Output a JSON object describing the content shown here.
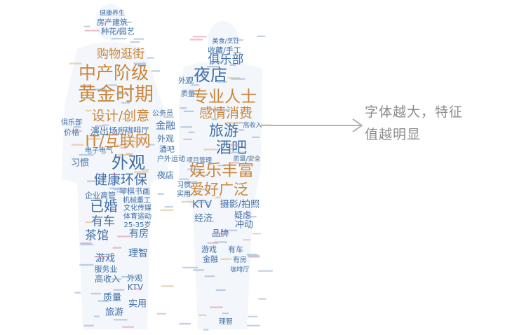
{
  "colors": {
    "blue": "#3f6ea8",
    "orange": "#c9863a",
    "light_blue": "#8aa9cf",
    "light_orange": "#dfb17a",
    "pink": "#e08aa0",
    "gray_text": "#8c8c8c",
    "arrow": "#b4b4b4"
  },
  "callout": {
    "line1": "字体越大，特征",
    "line2": "值越明显"
  },
  "left_figure": {
    "major": [
      {
        "text": "黄金时期",
        "color": "orange"
      },
      {
        "text": "中产阶级",
        "color": "orange"
      },
      {
        "text": "购物逛街",
        "color": "orange"
      },
      {
        "text": "设计/创意",
        "color": "orange"
      },
      {
        "text": "IT/互联网",
        "color": "orange"
      },
      {
        "text": "外观",
        "color": "blue"
      },
      {
        "text": "健康环保",
        "color": "blue"
      },
      {
        "text": "已婚",
        "color": "blue"
      },
      {
        "text": "茶馆",
        "color": "blue"
      },
      {
        "text": "有车",
        "color": "blue"
      },
      {
        "text": "金融",
        "color": "blue"
      },
      {
        "text": "演出场所",
        "color": "blue"
      },
      {
        "text": "咖啡厅",
        "color": "blue"
      },
      {
        "text": "有房",
        "color": "blue"
      },
      {
        "text": "理智",
        "color": "blue"
      },
      {
        "text": "游戏",
        "color": "blue"
      },
      {
        "text": "实用",
        "color": "blue"
      },
      {
        "text": "旅游",
        "color": "blue"
      },
      {
        "text": "质量",
        "color": "blue"
      },
      {
        "text": "KTV",
        "color": "blue"
      },
      {
        "text": "外观",
        "color": "blue"
      },
      {
        "text": "高收入",
        "color": "blue"
      },
      {
        "text": "服务业",
        "color": "blue"
      },
      {
        "text": "习惯",
        "color": "blue"
      },
      {
        "text": "夜店",
        "color": "blue"
      },
      {
        "text": "酒吧",
        "color": "blue"
      },
      {
        "text": "户外运动",
        "color": "blue"
      },
      {
        "text": "企业高管",
        "color": "blue"
      },
      {
        "text": "机械重工",
        "color": "blue"
      },
      {
        "text": "琴棋书画",
        "color": "blue"
      },
      {
        "text": "文化传媒",
        "color": "blue"
      },
      {
        "text": "体育运动",
        "color": "blue"
      },
      {
        "text": "25-35岁",
        "color": "blue"
      },
      {
        "text": "种花/园艺",
        "color": "blue"
      },
      {
        "text": "房产建筑",
        "color": "blue"
      },
      {
        "text": "健康养生",
        "color": "blue"
      },
      {
        "text": "价格",
        "color": "blue"
      },
      {
        "text": "俱乐部",
        "color": "blue"
      },
      {
        "text": "电子电气",
        "color": "blue"
      },
      {
        "text": "公务员",
        "color": "blue"
      },
      {
        "text": "外观",
        "color": "blue"
      }
    ]
  },
  "right_figure": {
    "major": [
      {
        "text": "专业人士",
        "color": "orange"
      },
      {
        "text": "夜店",
        "color": "blue"
      },
      {
        "text": "俱乐部",
        "color": "blue"
      },
      {
        "text": "感情消费",
        "color": "orange"
      },
      {
        "text": "旅游",
        "color": "blue"
      },
      {
        "text": "酒吧",
        "color": "blue"
      },
      {
        "text": "娱乐丰富",
        "color": "orange"
      },
      {
        "text": "爱好广泛",
        "color": "orange"
      },
      {
        "text": "KTV",
        "color": "blue"
      },
      {
        "text": "摄影/拍照",
        "color": "blue"
      },
      {
        "text": "经济",
        "color": "blue"
      },
      {
        "text": "冲动",
        "color": "blue"
      },
      {
        "text": "品牌",
        "color": "blue"
      },
      {
        "text": "疑虑",
        "color": "blue"
      },
      {
        "text": "游戏",
        "color": "blue"
      },
      {
        "text": "金融",
        "color": "blue"
      },
      {
        "text": "有车",
        "color": "blue"
      },
      {
        "text": "有房",
        "color": "blue"
      },
      {
        "text": "收藏/手工",
        "color": "blue"
      },
      {
        "text": "美食/烹饪",
        "color": "blue"
      },
      {
        "text": "外观",
        "color": "blue"
      },
      {
        "text": "质量",
        "color": "blue"
      },
      {
        "text": "高收入",
        "color": "blue"
      },
      {
        "text": "质量/安全",
        "color": "blue"
      },
      {
        "text": "项目管理",
        "color": "blue"
      },
      {
        "text": "实用",
        "color": "blue"
      },
      {
        "text": "习惯",
        "color": "blue"
      },
      {
        "text": "理智",
        "color": "blue"
      },
      {
        "text": "咖啡厅",
        "color": "blue"
      }
    ]
  }
}
